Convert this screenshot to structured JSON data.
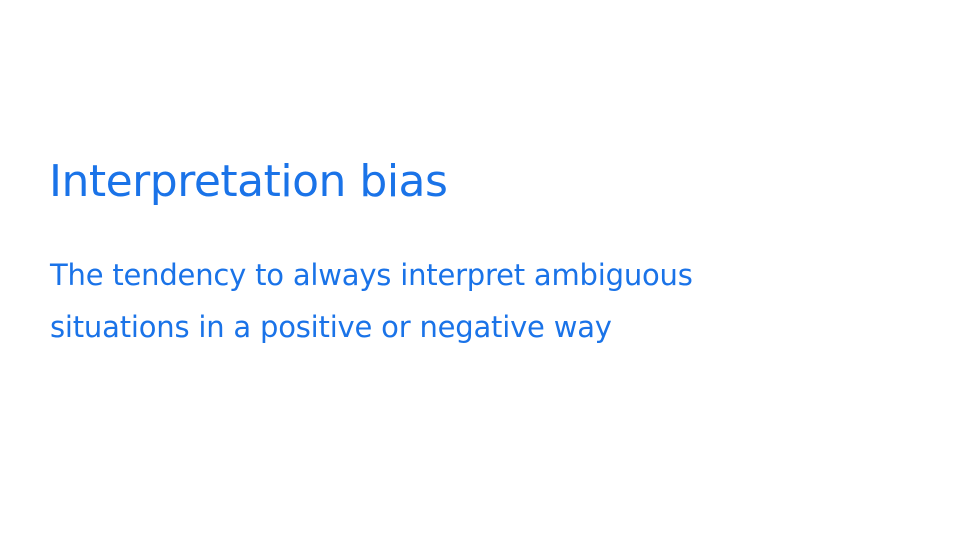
{
  "slide": {
    "title": "Interpretation bias",
    "definition_lines": [
      "The tendency to always interpret ambiguous",
      "situations in a positive or negative way"
    ]
  },
  "colors": {
    "text": "#1a73e8",
    "background": "#ffffff"
  }
}
